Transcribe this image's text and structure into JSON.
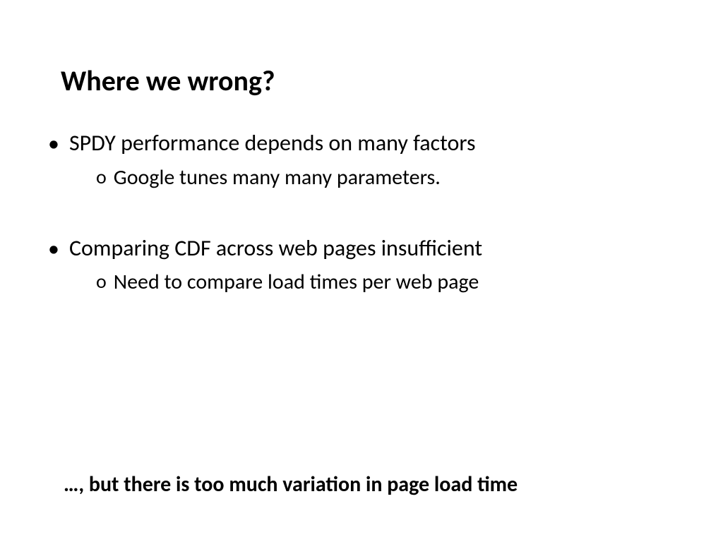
{
  "title": "Where we wrong?",
  "bullets": [
    {
      "text": "SPDY performance depends on many factors",
      "subs": [
        "Google tunes many many parameters."
      ]
    },
    {
      "text": "Comparing CDF across web pages insufficient",
      "subs": [
        "Need to compare load times per web page"
      ]
    }
  ],
  "bottom_line": "…, but there is too much variation in page load time",
  "style": {
    "background_color": "#ffffff",
    "text_color": "#000000",
    "title_fontsize": 40,
    "title_fontweight": 700,
    "bullet_fontsize": 32,
    "bullet_fontweight": 400,
    "sub_fontsize": 30,
    "sub_fontweight": 400,
    "bottom_fontsize": 30,
    "bottom_fontweight": 700,
    "bullet_marker": "•",
    "sub_marker": "o",
    "font_family": "Calibri"
  }
}
